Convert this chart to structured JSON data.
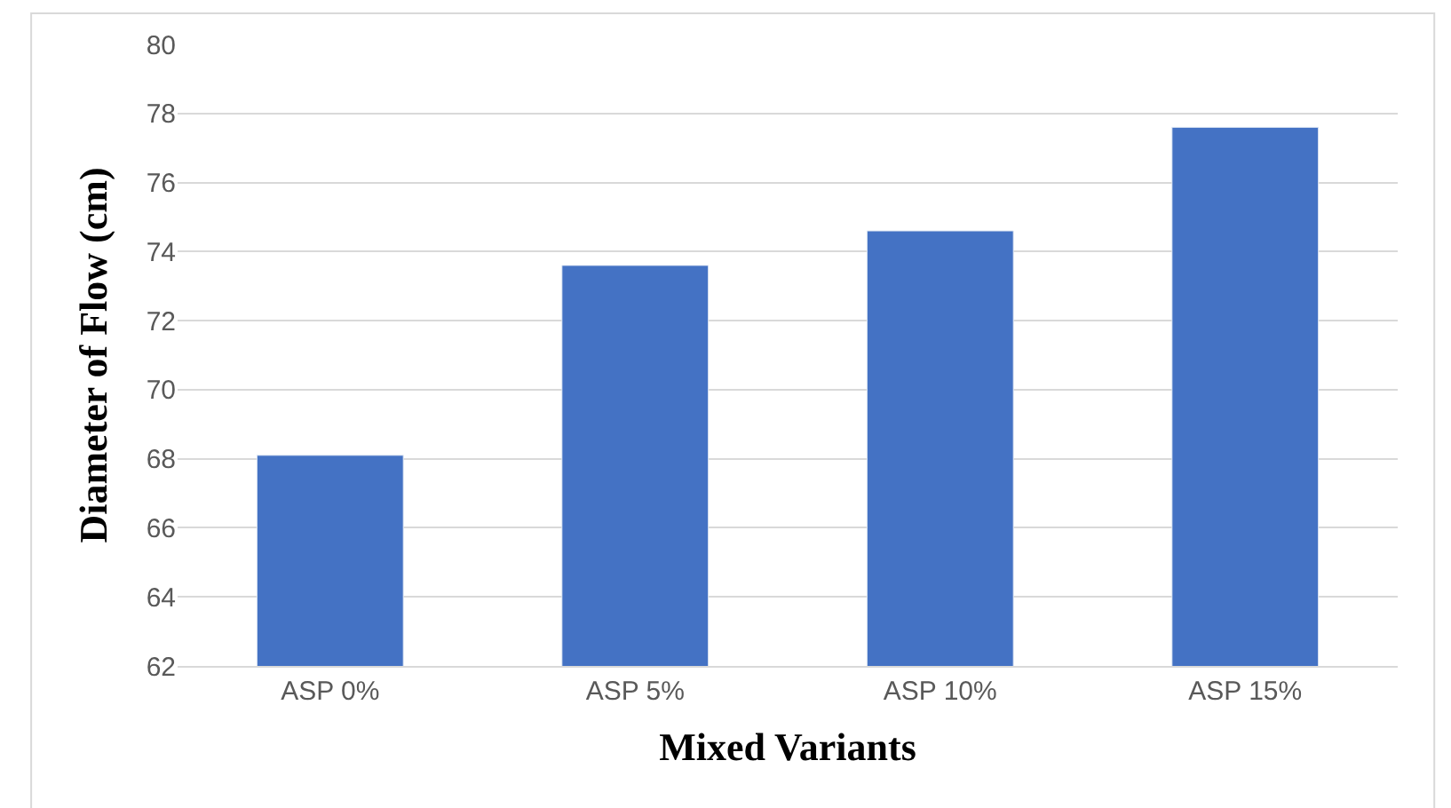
{
  "chart_data": {
    "type": "bar",
    "xlabel": "Mixed Variants",
    "ylabel": "Diameter of Flow (cm)",
    "categories": [
      "ASP 0%",
      "ASP 5%",
      "ASP 10%",
      "ASP 15%"
    ],
    "values": [
      68.1,
      73.6,
      74.6,
      77.6
    ],
    "color": "#4472c4",
    "ylim": [
      62,
      80
    ],
    "yticks": [
      62,
      64,
      66,
      68,
      70,
      72,
      74,
      76,
      78,
      80
    ],
    "grid": "y"
  }
}
